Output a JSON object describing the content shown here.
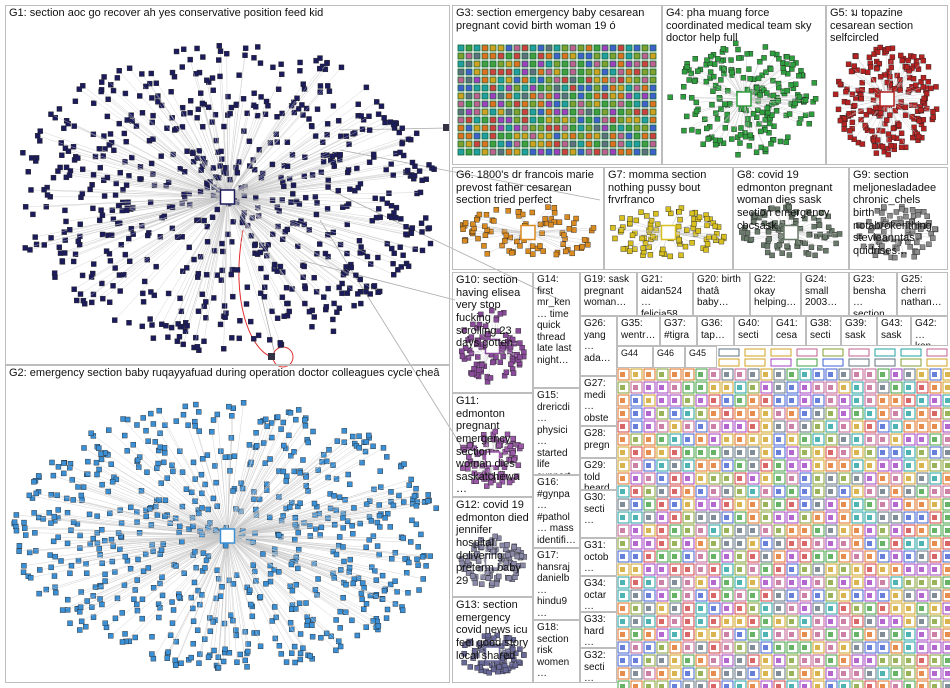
{
  "groups": [
    {
      "label": "G1: section aoc go recover ah yes conservative position feed kid"
    },
    {
      "label": "G2: emergency section baby ruqayyafuad during operation doctor colleagues cycle cheâ"
    },
    {
      "label": "G3: section emergency baby cesarean pregnant covid birth woman 19 ó"
    },
    {
      "label": "G4: pha muang force coordinated medical team sky doctor help full"
    },
    {
      "label": "G5: ม topazine cesarean section selfcircled"
    },
    {
      "label": "G6: 1800's dr francois marie prevost father cesarean section tried perfect"
    },
    {
      "label": "G7: momma section nothing pussy bout frvrfranco"
    },
    {
      "label": "G8: covid 19 edmonton pregnant woman dies sask section emergency cbcsask"
    },
    {
      "label": "G9: section meljonesladadee chronic_chels birth notabrokenthing stevieanntas quidrises…"
    },
    {
      "label": "G10: section having elisea very stop fucking scrolling 23 days gotten"
    },
    {
      "label": "G11: edmonton pregnant emergency section woman dies saskatchewa…"
    },
    {
      "label": "G12: covid 19 edmonton died jennifer hospital delivering preterm baby 29"
    },
    {
      "label": "G13: section emergency covid news icu feel good story local shared"
    },
    {
      "label": "G14: first mr_ken… time quick thread late last night…"
    },
    {
      "label": "G15: drericdi… physici… started life support…"
    },
    {
      "label": "G16: #gynpa… #pathol… mass identifi…"
    },
    {
      "label": "G17: hansraj danielb… hindu9… 1blibert"
    },
    {
      "label": "G18: section risk women…"
    },
    {
      "label": "G19: sask pregnant woman…"
    },
    {
      "label": "G20: birth thatâ baby…"
    },
    {
      "label": "G21: aidan524… felicia58…"
    },
    {
      "label": "G22: okay helping…"
    },
    {
      "label": "G23: bensha… section…"
    },
    {
      "label": "G24: small 2003…"
    },
    {
      "label": "G25: cherri nathan…"
    },
    {
      "label": "G26: yang… ada…"
    },
    {
      "label": "G27: medi… obste…"
    },
    {
      "label": "G28: pregn… covid…"
    },
    {
      "label": "G29: told heard…"
    },
    {
      "label": "G30: secti…"
    },
    {
      "label": "G31: octob…"
    },
    {
      "label": "G32: secti…"
    },
    {
      "label": "G33: hard…"
    },
    {
      "label": "G34: octar…"
    },
    {
      "label": "G35: wentr…"
    },
    {
      "label": "G36: tap…"
    },
    {
      "label": "G37: #tigra…"
    },
    {
      "label": "G38: secti…"
    },
    {
      "label": "G39: sask…"
    },
    {
      "label": "G40: secti…"
    },
    {
      "label": "G41: cesa…"
    },
    {
      "label": "G42: …ken…"
    },
    {
      "label": "G43: sask…"
    },
    {
      "label": "G44"
    },
    {
      "label": "G45"
    },
    {
      "label": "G46"
    }
  ]
}
